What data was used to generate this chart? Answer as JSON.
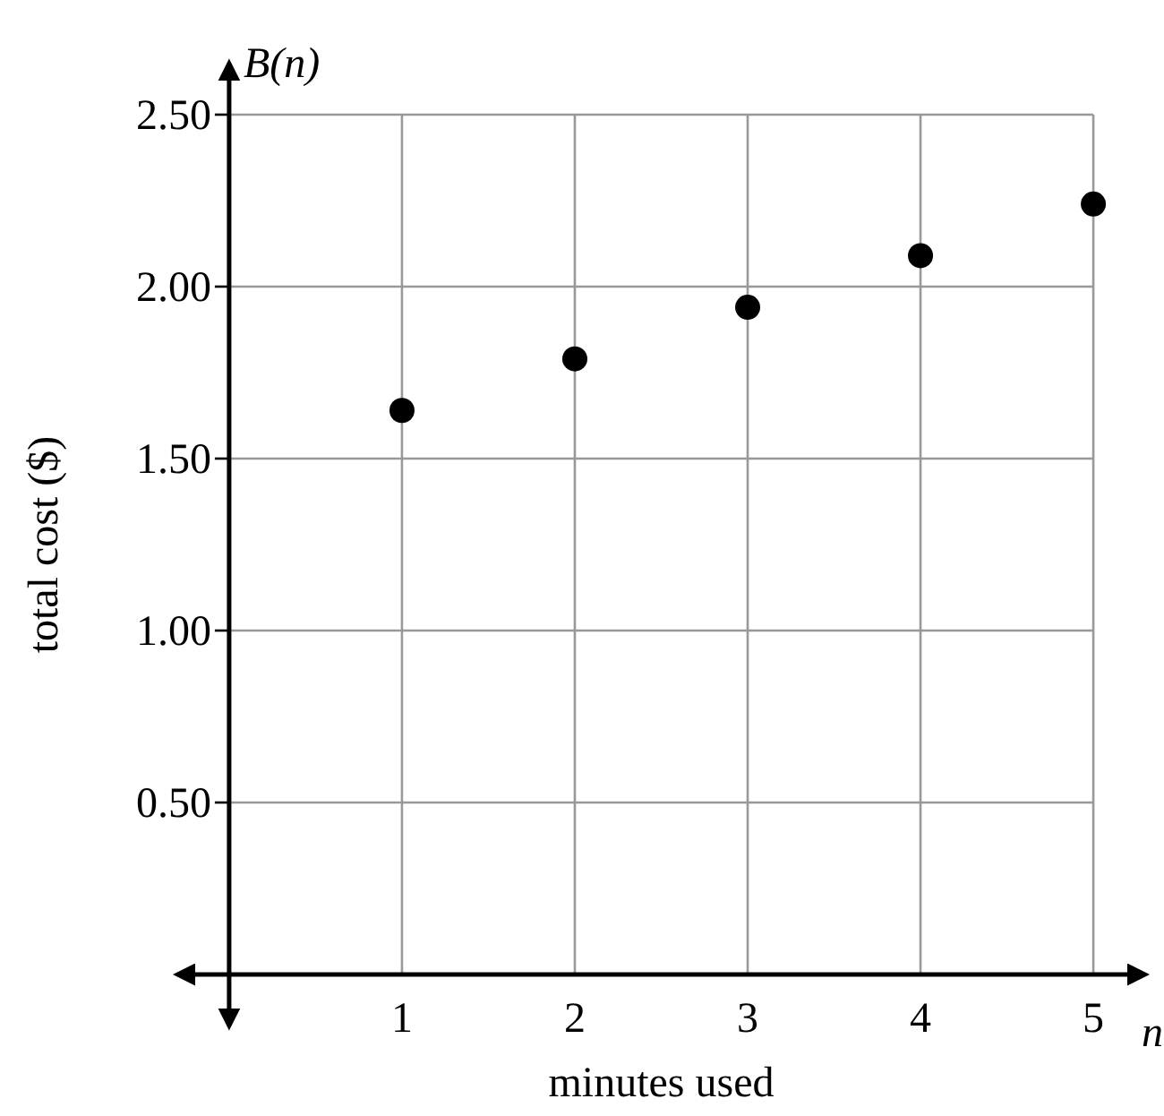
{
  "chart_data": {
    "type": "scatter",
    "xlabel": "minutes used",
    "ylabel": "total cost ($)",
    "annotations": [
      "B(n)",
      "n"
    ],
    "x": [
      1,
      2,
      3,
      4,
      5
    ],
    "values": [
      1.64,
      1.79,
      1.94,
      2.09,
      2.24
    ],
    "color": "#000000",
    "marker": "circle",
    "xlim": [
      -0.3,
      5.3
    ],
    "ylim": [
      -0.15,
      2.65
    ],
    "xticks": [
      1,
      2,
      3,
      4,
      5
    ],
    "yticks": [
      {
        "value": 0.5,
        "label": "0.50"
      },
      {
        "value": 1,
        "label": "1.00"
      },
      {
        "value": 1.5,
        "label": "1.50"
      },
      {
        "value": 2,
        "label": "2.00"
      },
      {
        "value": 2.5,
        "label": "2.50"
      }
    ],
    "grid": true
  }
}
